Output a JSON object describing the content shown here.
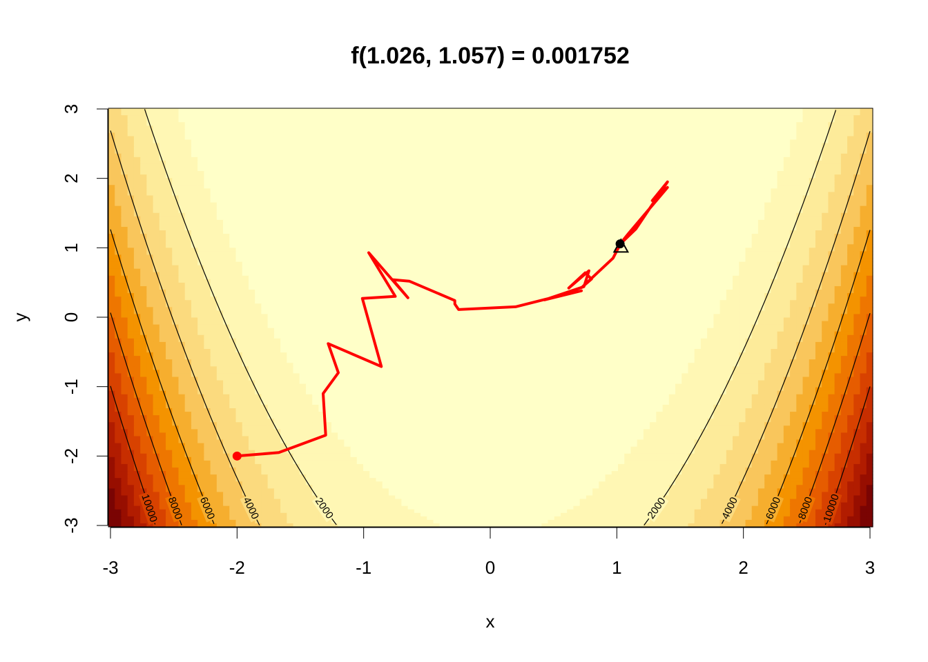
{
  "chart_data": {
    "type": "heatmap",
    "title": "f(1.026, 1.057) = 0.001752",
    "xlabel": "x",
    "ylabel": "y",
    "xlim": [
      -3,
      3
    ],
    "ylim": [
      -3,
      3
    ],
    "x_ticks": [
      "-3",
      "-2",
      "-1",
      "0",
      "1",
      "2",
      "3"
    ],
    "y_ticks": [
      "-3",
      "-2",
      "-1",
      "0",
      "1",
      "2",
      "3"
    ],
    "grid": false,
    "legend": "none",
    "surface": {
      "function": "rosenbrock",
      "a": 1,
      "b": 100,
      "level_breaks": [
        0,
        1000,
        2000,
        3000,
        4000,
        5000,
        6000,
        7000,
        8000,
        9000,
        10000,
        11000,
        12000,
        13000,
        14000
      ],
      "level_colors": [
        "#FFFFC8",
        "#FFF7B4",
        "#FDEB9A",
        "#FBDA7E",
        "#F9C65C",
        "#F6AE2E",
        "#F49300",
        "#EE7600",
        "#E65C00",
        "#D84200",
        "#C72E00",
        "#B11C00",
        "#970E00",
        "#7A0403"
      ]
    },
    "contours": {
      "levels": [
        2000,
        4000,
        6000,
        8000,
        10000
      ],
      "labels": [
        "2000",
        "4000",
        "6000",
        "8000",
        "10000"
      ],
      "color": "#000000"
    },
    "path": {
      "color": "#FF0000",
      "points": [
        [
          -2.0,
          -2.0
        ],
        [
          -1.67,
          -1.95
        ],
        [
          -1.3,
          -1.7
        ],
        [
          -1.32,
          -1.1
        ],
        [
          -1.2,
          -0.8
        ],
        [
          -1.28,
          -0.38
        ],
        [
          -0.86,
          -0.71
        ],
        [
          -1.01,
          0.27
        ],
        [
          -0.75,
          0.3
        ],
        [
          -0.96,
          0.93
        ],
        [
          -0.77,
          0.53
        ],
        [
          -0.65,
          0.28
        ],
        [
          -0.77,
          0.54
        ],
        [
          -0.64,
          0.52
        ],
        [
          -0.28,
          0.24
        ],
        [
          -0.28,
          0.19
        ],
        [
          -0.25,
          0.11
        ],
        [
          0.2,
          0.15
        ],
        [
          0.44,
          0.26
        ],
        [
          0.72,
          0.38
        ],
        [
          0.43,
          0.25
        ],
        [
          0.74,
          0.44
        ],
        [
          0.78,
          0.67
        ],
        [
          0.62,
          0.42
        ],
        [
          0.75,
          0.64
        ],
        [
          0.8,
          0.55
        ],
        [
          0.73,
          0.44
        ],
        [
          0.97,
          0.85
        ],
        [
          1.03,
          1.06
        ],
        [
          1.15,
          1.27
        ],
        [
          1.4,
          1.95
        ],
        [
          1.28,
          1.68
        ],
        [
          1.4,
          1.87
        ],
        [
          1.09,
          1.2
        ],
        [
          1.026,
          1.057
        ]
      ],
      "start": [
        -2.0,
        -2.0
      ],
      "end": [
        1.026,
        1.057
      ],
      "optimum": [
        1,
        1
      ]
    }
  }
}
